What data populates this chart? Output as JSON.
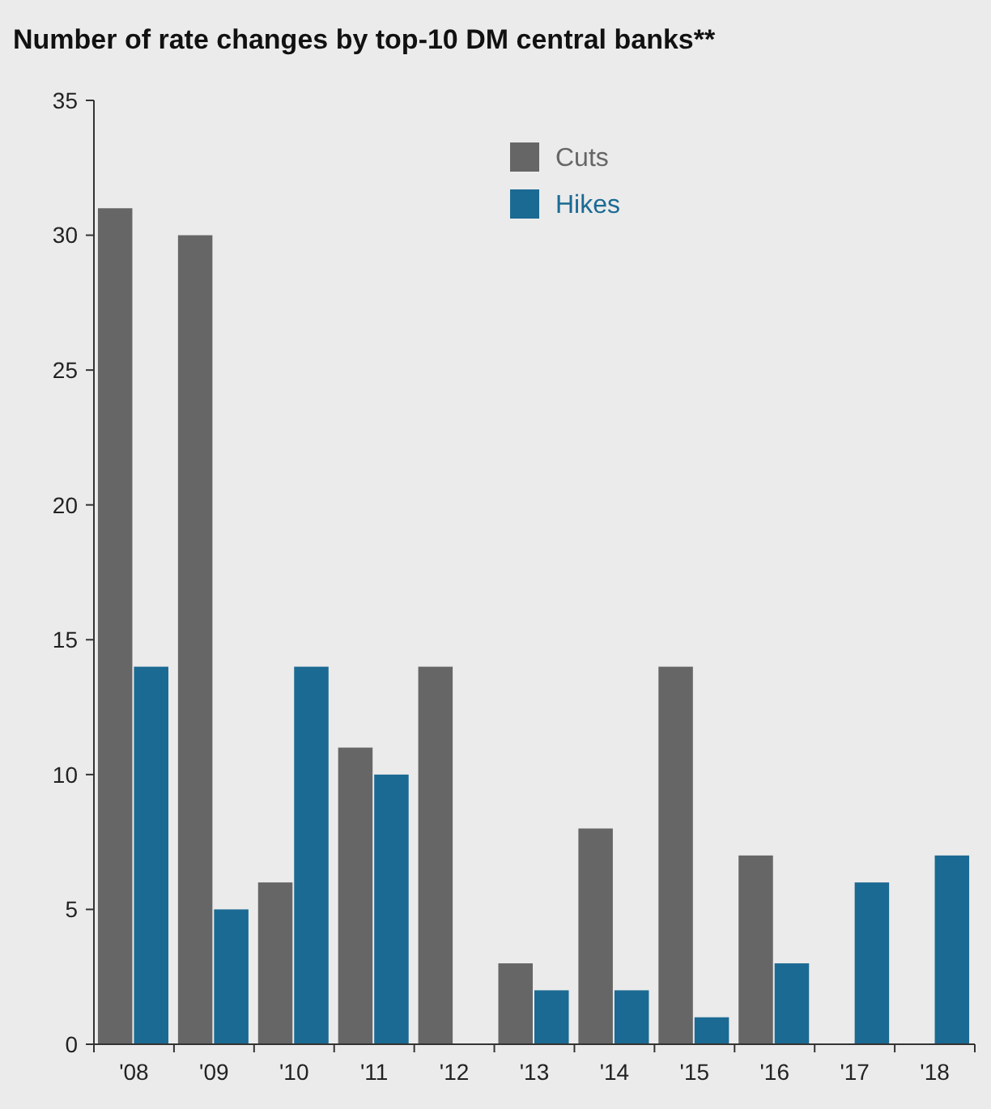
{
  "chart_data": {
    "type": "bar",
    "title": "Number of rate changes by top-10 DM central banks**",
    "categories": [
      "'08",
      "'09",
      "'10",
      "'11",
      "'12",
      "'13",
      "'14",
      "'15",
      "'16",
      "'17",
      "'18"
    ],
    "series": [
      {
        "name": "Cuts",
        "color": "#666666",
        "values": [
          31,
          30,
          6,
          11,
          14,
          3,
          8,
          14,
          7,
          null,
          null
        ]
      },
      {
        "name": "Hikes",
        "color": "#1b6a93",
        "values": [
          14,
          5,
          14,
          10,
          null,
          2,
          2,
          1,
          3,
          6,
          7
        ]
      }
    ],
    "ylim": [
      0,
      35
    ],
    "yticks": [
      0,
      5,
      10,
      15,
      20,
      25,
      30,
      35
    ],
    "grid": false,
    "legend": "top"
  }
}
